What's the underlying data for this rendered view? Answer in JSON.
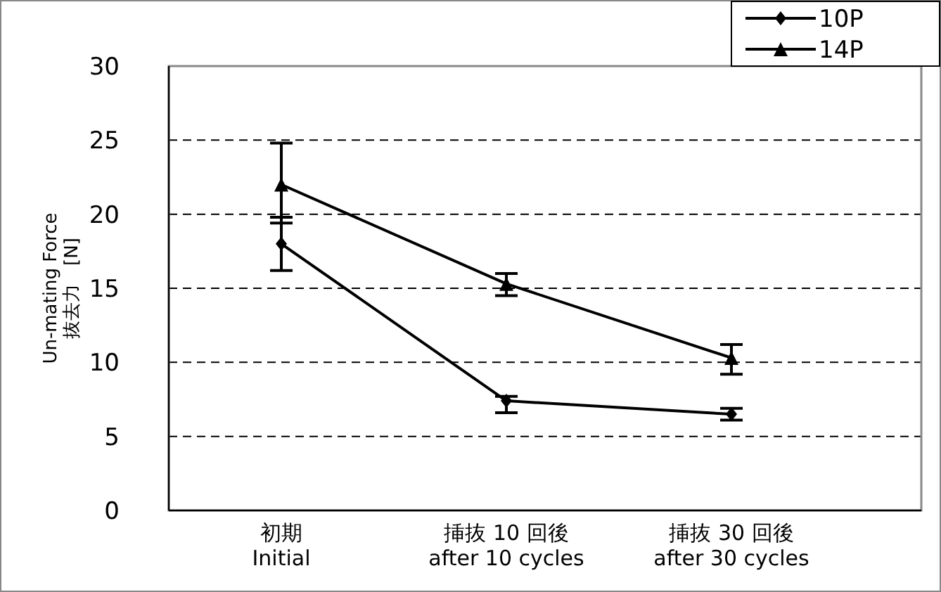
{
  "chart_data": {
    "type": "line",
    "ylabel": "Un-mating Force\n抜去力　[N]",
    "categories": [
      "初期\nInitial",
      "挿抜 10 回後\nafter 10 cycles",
      "挿抜 30 回後\nafter 30 cycles"
    ],
    "series": [
      {
        "name": "10P",
        "color": "#000000",
        "marker": "diamond",
        "values": [
          18.0,
          7.4,
          6.5
        ],
        "errors": [
          [
            16.2,
            19.8
          ],
          [
            6.6,
            7.7
          ],
          [
            6.1,
            6.9
          ]
        ]
      },
      {
        "name": "14P",
        "color": "#000000",
        "marker": "triangle",
        "values": [
          22.0,
          15.3,
          10.3
        ],
        "errors": [
          [
            19.4,
            24.8
          ],
          [
            14.5,
            16.0
          ],
          [
            9.2,
            11.2
          ]
        ]
      }
    ],
    "ylim": [
      0,
      30
    ],
    "yticks": [
      0,
      5,
      10,
      15,
      20,
      25,
      30
    ],
    "grid": "y",
    "legend": "top right"
  }
}
